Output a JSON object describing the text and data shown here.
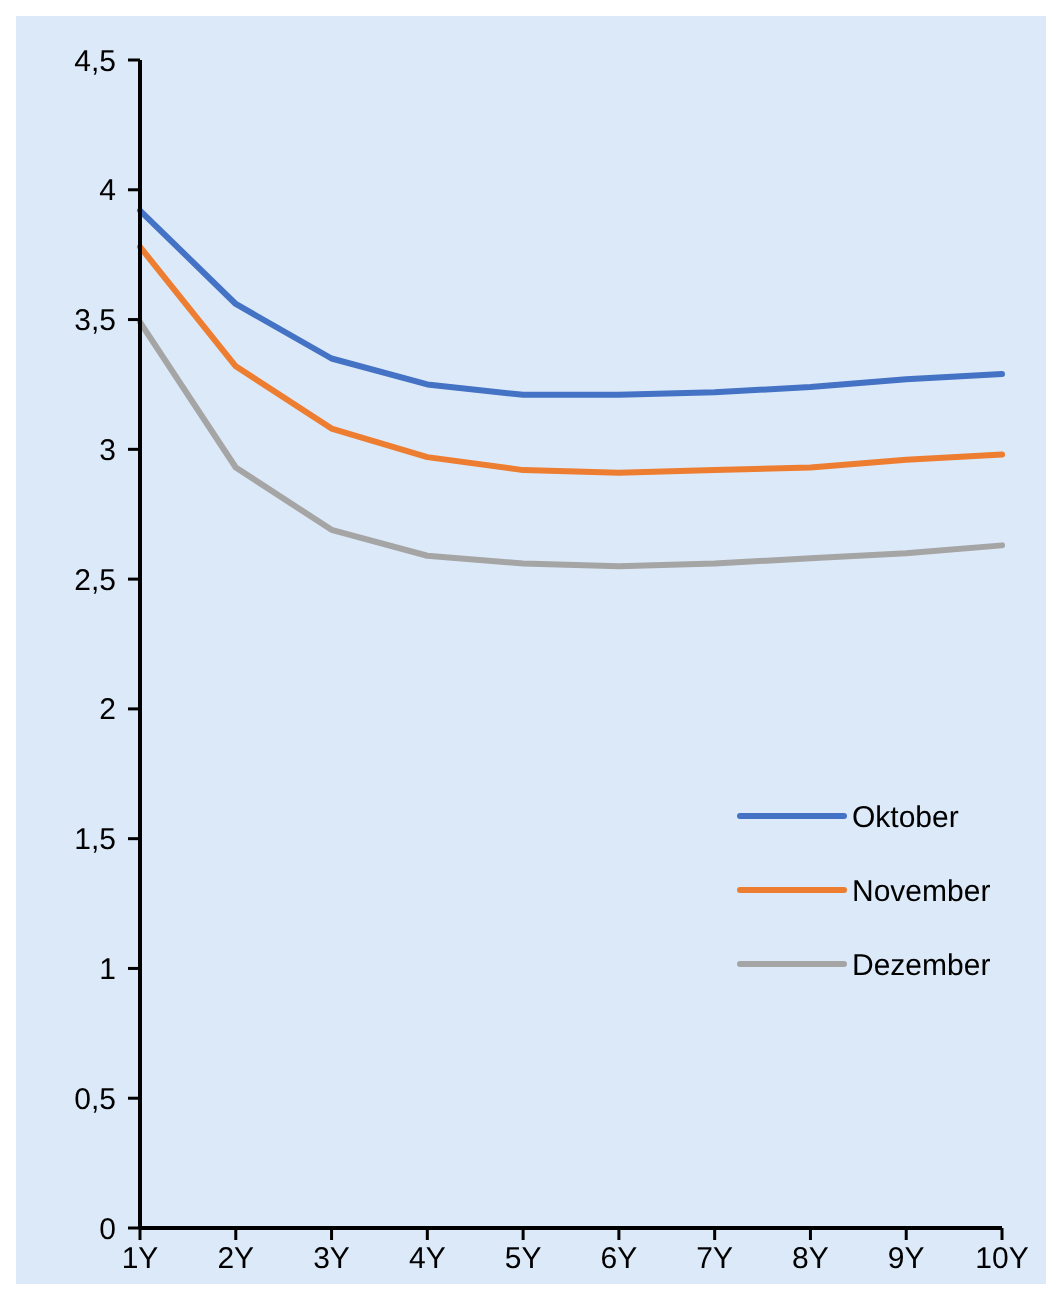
{
  "chart_data": {
    "type": "line",
    "categories": [
      "1Y",
      "2Y",
      "3Y",
      "4Y",
      "5Y",
      "6Y",
      "7Y",
      "8Y",
      "9Y",
      "10Y"
    ],
    "series": [
      {
        "name": "Oktober",
        "color": "#4472c4",
        "values": [
          3.92,
          3.56,
          3.35,
          3.25,
          3.21,
          3.21,
          3.22,
          3.24,
          3.27,
          3.29
        ]
      },
      {
        "name": "November",
        "color": "#ed7d31",
        "values": [
          3.78,
          3.32,
          3.08,
          2.97,
          2.92,
          2.91,
          2.92,
          2.93,
          2.96,
          2.98
        ]
      },
      {
        "name": "Dezember",
        "color": "#a5a5a5",
        "values": [
          3.49,
          2.93,
          2.69,
          2.59,
          2.56,
          2.55,
          2.56,
          2.58,
          2.6,
          2.63
        ]
      }
    ],
    "ylim": [
      0,
      4.5
    ],
    "yticks": [
      {
        "value": 0,
        "label": "0"
      },
      {
        "value": 0.5,
        "label": "0,5"
      },
      {
        "value": 1,
        "label": "1"
      },
      {
        "value": 1.5,
        "label": "1,5"
      },
      {
        "value": 2,
        "label": "2"
      },
      {
        "value": 2.5,
        "label": "2,5"
      },
      {
        "value": 3,
        "label": "3"
      },
      {
        "value": 3.5,
        "label": "3,5"
      },
      {
        "value": 4,
        "label": "4"
      },
      {
        "value": 4.5,
        "label": "4,5"
      }
    ],
    "grid": false,
    "legend": "right",
    "marker": "none",
    "line_style": "solid"
  }
}
